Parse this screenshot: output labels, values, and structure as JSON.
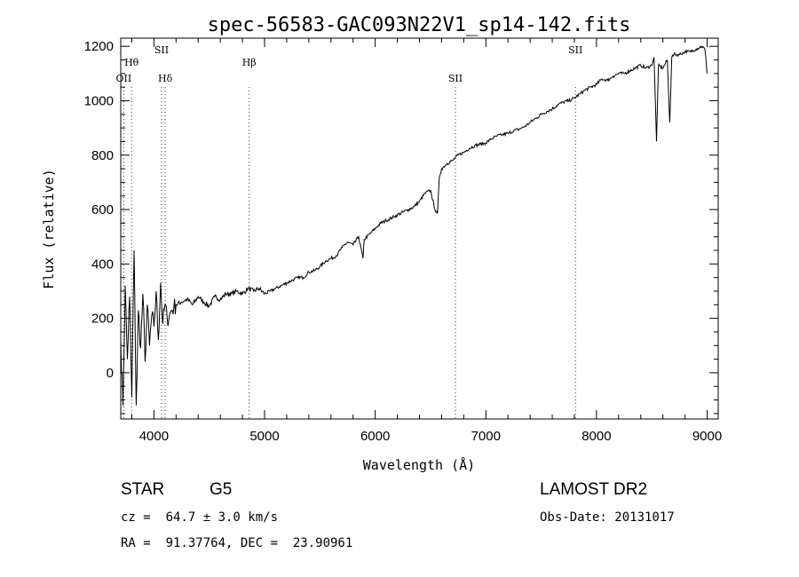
{
  "chart_data": {
    "type": "line",
    "title": "spec-56583-GAC093N22V1_sp14-142.fits",
    "xlabel": "Wavelength (Å)",
    "ylabel": "Flux (relative)",
    "xlim": [
      3700,
      9100
    ],
    "ylim": [
      -170,
      1230
    ],
    "xticks": [
      4000,
      5000,
      6000,
      7000,
      8000,
      9000
    ],
    "yticks": [
      0,
      200,
      400,
      600,
      800,
      1000,
      1200
    ],
    "grid": false,
    "series": [
      {
        "x": [
          3700,
          3720,
          3740,
          3760,
          3780,
          3800,
          3820,
          3840,
          3860,
          3880,
          3900,
          3920,
          3940,
          3960,
          3980,
          4000,
          4020,
          4040,
          4060,
          4080,
          4100,
          4120,
          4140,
          4160,
          4180,
          4200,
          4250,
          4300,
          4350,
          4400,
          4450,
          4500,
          4550,
          4600,
          4650,
          4700,
          4750,
          4800,
          4850,
          4900,
          4950,
          5000,
          5050,
          5100,
          5150,
          5200,
          5250,
          5300,
          5350,
          5400,
          5450,
          5500,
          5550,
          5600,
          5650,
          5700,
          5750,
          5800,
          5850,
          5890,
          5900,
          5950,
          6000,
          6050,
          6100,
          6150,
          6200,
          6250,
          6300,
          6350,
          6400,
          6450,
          6500,
          6540,
          6563,
          6580,
          6600,
          6650,
          6700,
          6750,
          6800,
          6850,
          6900,
          6950,
          7000,
          7050,
          7100,
          7150,
          7200,
          7250,
          7300,
          7350,
          7400,
          7450,
          7500,
          7550,
          7600,
          7650,
          7700,
          7750,
          7800,
          7850,
          7900,
          7950,
          8000,
          8050,
          8100,
          8150,
          8200,
          8250,
          8300,
          8350,
          8400,
          8450,
          8498,
          8520,
          8542,
          8560,
          8600,
          8640,
          8662,
          8680,
          8700,
          8750,
          8800,
          8850,
          8900,
          8950,
          8980,
          9000
        ],
        "y": [
          120,
          -120,
          320,
          50,
          280,
          -90,
          450,
          -120,
          230,
          90,
          290,
          40,
          250,
          100,
          210,
          170,
          300,
          120,
          330,
          180,
          250,
          200,
          210,
          230,
          240,
          250,
          260,
          270,
          250,
          280,
          260,
          245,
          280,
          270,
          290,
          290,
          300,
          290,
          310,
          300,
          310,
          290,
          300,
          310,
          320,
          330,
          340,
          350,
          350,
          370,
          375,
          390,
          410,
          420,
          430,
          460,
          480,
          470,
          500,
          420,
          490,
          510,
          530,
          550,
          560,
          570,
          580,
          590,
          600,
          610,
          630,
          660,
          670,
          600,
          585,
          720,
          750,
          770,
          780,
          800,
          810,
          825,
          835,
          840,
          845,
          860,
          870,
          875,
          880,
          890,
          895,
          905,
          920,
          935,
          950,
          960,
          970,
          985,
          995,
          1000,
          1010,
          1025,
          1040,
          1050,
          1060,
          1080,
          1075,
          1090,
          1100,
          1100,
          1110,
          1120,
          1130,
          1120,
          1130,
          1160,
          850,
          1130,
          1120,
          1150,
          920,
          1160,
          1170,
          1170,
          1180,
          1180,
          1190,
          1200,
          1190,
          1100
        ]
      }
    ],
    "reference_lines": [
      {
        "label": "OII",
        "x": 3727
      },
      {
        "label": "Hθ",
        "x": 3798
      },
      {
        "label": "SII",
        "x": 4069
      },
      {
        "label": "Hδ",
        "x": 4102
      },
      {
        "label": "Hβ",
        "x": 4861
      },
      {
        "label": "SII",
        "x": 6725
      },
      {
        "label": "SII",
        "x": 7810
      }
    ]
  },
  "info": {
    "class": "STAR",
    "subclass": "G5",
    "survey": "LAMOST DR2",
    "redshift_line": "cz =  64.7 ± 3.0 km/s",
    "date_line": "Obs-Date: 20131017",
    "coord_line": "RA =  91.37764, DEC =  23.90961"
  }
}
